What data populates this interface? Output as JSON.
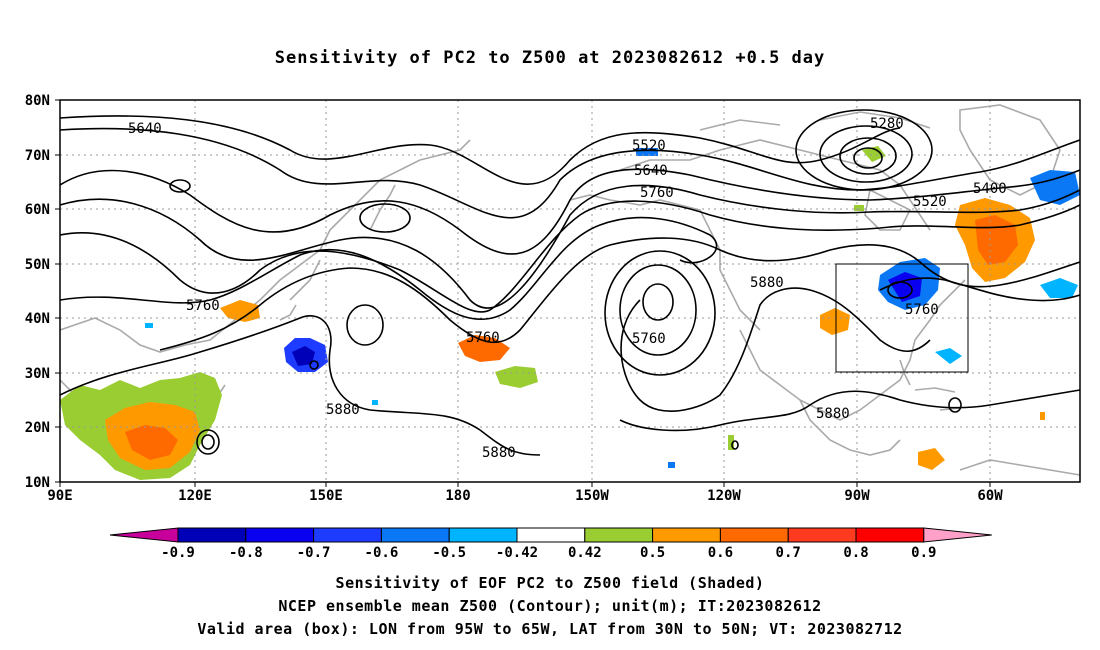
{
  "title": "Sensitivity of PC2 to Z500 at 2023082612 +0.5 day",
  "lat_labels": [
    "80N",
    "70N",
    "60N",
    "50N",
    "40N",
    "30N",
    "20N",
    "10N"
  ],
  "lon_labels": [
    "90E",
    "120E",
    "150E",
    "180",
    "150W",
    "120W",
    "90W",
    "60W"
  ],
  "contour_labels": [
    {
      "text": "5640"
    },
    {
      "text": "5520"
    },
    {
      "text": "5640"
    },
    {
      "text": "5760"
    },
    {
      "text": "5280"
    },
    {
      "text": "5400"
    },
    {
      "text": "5520"
    },
    {
      "text": "5760"
    },
    {
      "text": "5760"
    },
    {
      "text": "5880"
    },
    {
      "text": "5760"
    },
    {
      "text": "5880"
    },
    {
      "text": "5880"
    },
    {
      "text": "5760"
    },
    {
      "text": "5880"
    }
  ],
  "colorbar": {
    "labels": [
      "-0.9",
      "-0.8",
      "-0.7",
      "-0.6",
      "-0.5",
      "-0.42",
      "0.42",
      "0.5",
      "0.6",
      "0.7",
      "0.8",
      "0.9"
    ],
    "colors": [
      "#0000b8",
      "#0a00f0",
      "#1e3cff",
      "#0a78f5",
      "#00b4ff",
      "#ffffff",
      "#9acd32",
      "#ff9900",
      "#ff6a00",
      "#ff3b1f",
      "#ff0000"
    ],
    "under_color": "#c8009b",
    "over_color": "#ffa0c8"
  },
  "caption": {
    "line1": "Sensitivity of EOF PC2 to Z500 field (Shaded)",
    "line2": "NCEP ensemble mean Z500 (Contour); unit(m); IT:2023082612",
    "line3": "Valid area (box): LON from 95W to 65W, LAT from 30N to 50N; VT: 2023082712"
  },
  "valid_box": {
    "lon_min": -95,
    "lon_max": -65,
    "lat_min": 30,
    "lat_max": 50
  }
}
